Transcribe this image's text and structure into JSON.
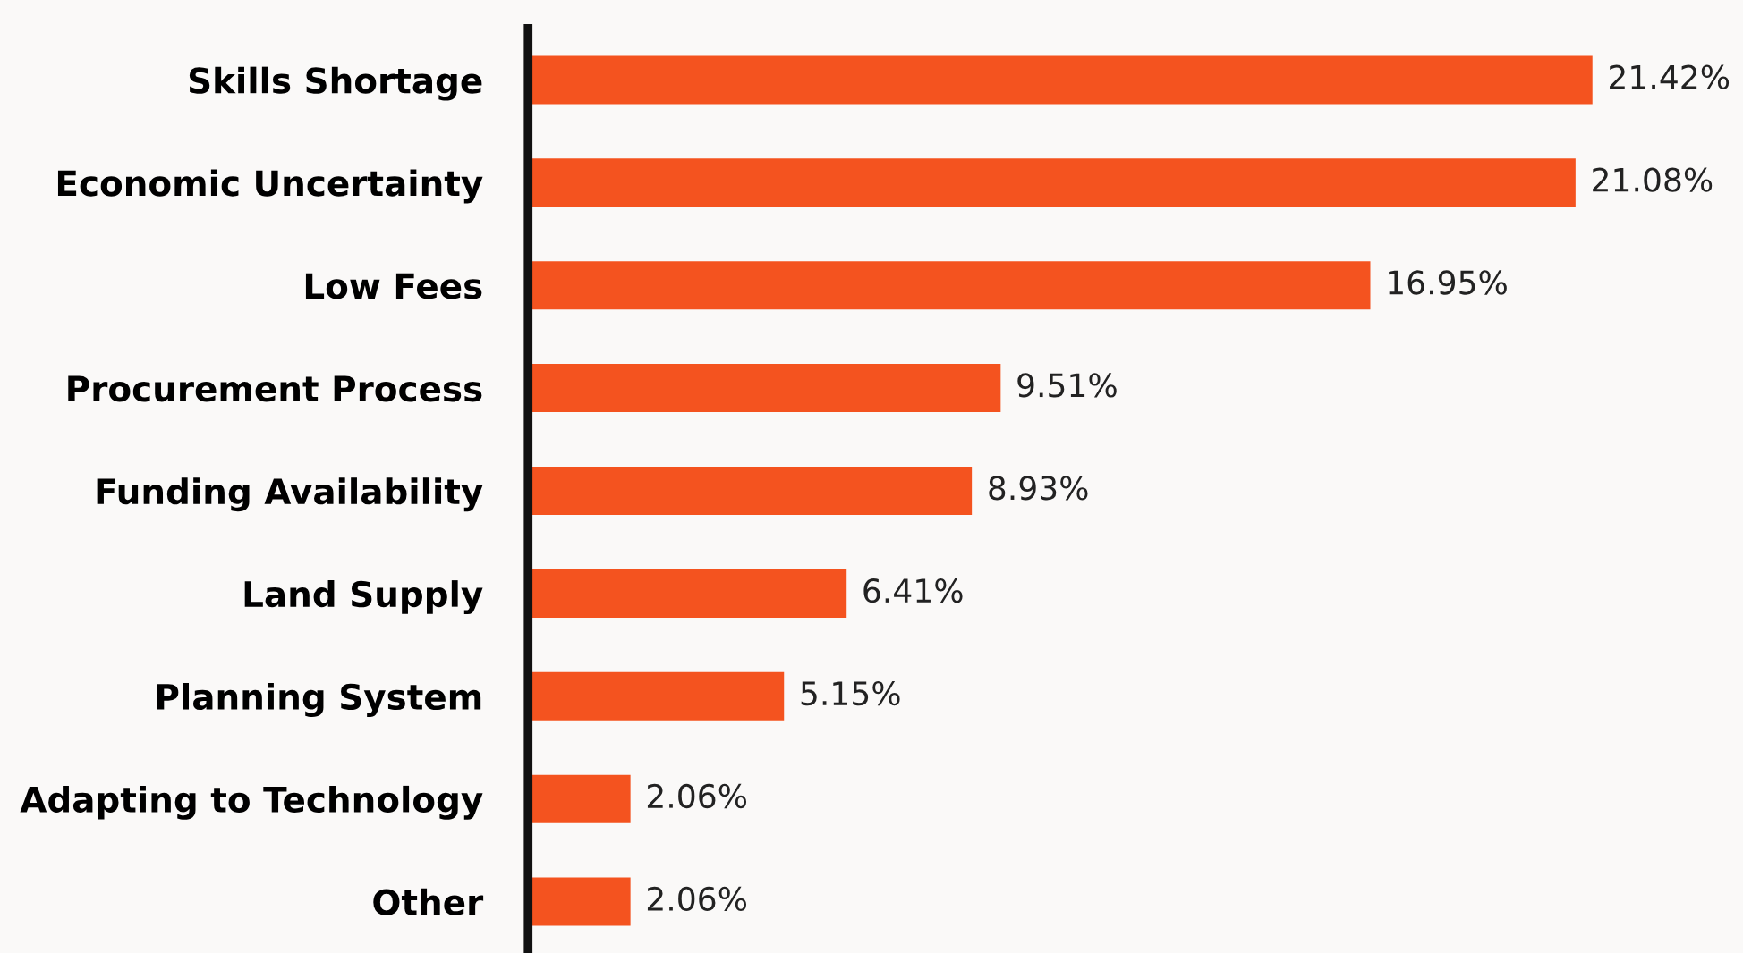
{
  "chart_data": {
    "type": "bar",
    "orientation": "horizontal",
    "categories": [
      "Skills Shortage",
      "Economic Uncertainty",
      "Low Fees",
      "Procurement Process",
      "Funding Availability",
      "Land Supply",
      "Planning System",
      "Adapting to Technology",
      "Other"
    ],
    "values": [
      21.42,
      21.08,
      16.95,
      9.51,
      8.93,
      6.41,
      5.15,
      2.06,
      2.06
    ],
    "value_labels": [
      "21.42%",
      "21.08%",
      "16.95%",
      "9.51%",
      "8.93%",
      "6.41%",
      "5.15%",
      "2.06%",
      "2.06%"
    ],
    "color": "#f4531f",
    "tick_labels": "y",
    "grid": false,
    "legend": false
  }
}
